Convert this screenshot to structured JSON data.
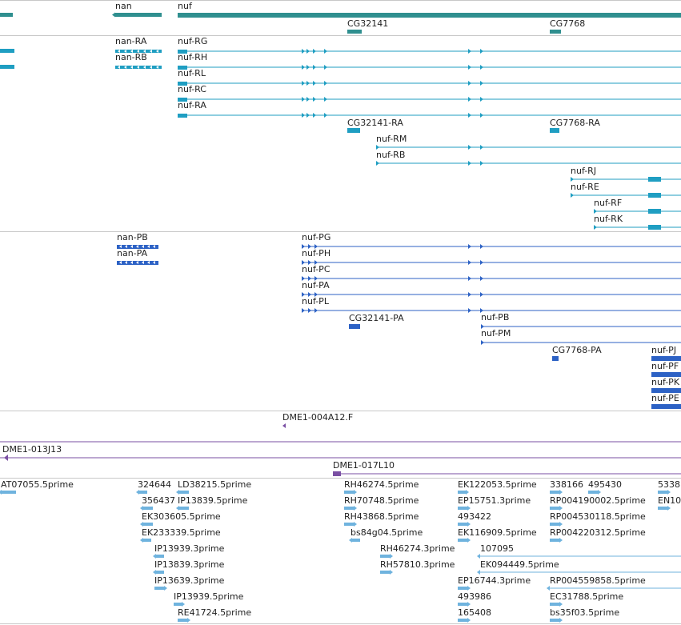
{
  "colors": {
    "gene": "#2f8f8f",
    "transcript": "#1f9ec2",
    "protein": "#2d62c5",
    "clone": "#7a4fa3",
    "est": "#6fb3de",
    "separator": "#c8c8c8"
  },
  "tracks": {
    "genes": [
      {
        "label": "nan"
      },
      {
        "label": "nuf"
      },
      {
        "label": "CG32141"
      },
      {
        "label": "CG7768"
      }
    ],
    "transcripts": [
      {
        "label": "nan-RA"
      },
      {
        "label": "nan-RB"
      },
      {
        "label": "nuf-RG"
      },
      {
        "label": "nuf-RH"
      },
      {
        "label": "nuf-RL"
      },
      {
        "label": "nuf-RC"
      },
      {
        "label": "nuf-RA"
      },
      {
        "label": "CG32141-RA"
      },
      {
        "label": "CG7768-RA"
      },
      {
        "label": "nuf-RM"
      },
      {
        "label": "nuf-RB"
      },
      {
        "label": "nuf-RJ"
      },
      {
        "label": "nuf-RE"
      },
      {
        "label": "nuf-RF"
      },
      {
        "label": "nuf-RK"
      }
    ],
    "proteins": [
      {
        "label": "nan-PB"
      },
      {
        "label": "nan-PA"
      },
      {
        "label": "nuf-PG"
      },
      {
        "label": "nuf-PH"
      },
      {
        "label": "nuf-PC"
      },
      {
        "label": "nuf-PA"
      },
      {
        "label": "nuf-PL"
      },
      {
        "label": "CG32141-PA"
      },
      {
        "label": "nuf-PB"
      },
      {
        "label": "nuf-PM"
      },
      {
        "label": "CG7768-PA"
      },
      {
        "label": "nuf-PJ"
      },
      {
        "label": "nuf-PF"
      },
      {
        "label": "nuf-PK"
      },
      {
        "label": "nuf-PE"
      }
    ],
    "clones": [
      {
        "label": "DME1-004A12.F"
      },
      {
        "label": "DME1-013J13"
      },
      {
        "label": "DME1-017L10"
      }
    ],
    "ests": [
      {
        "label": "AT07055.5prime"
      },
      {
        "label": "324644"
      },
      {
        "label": "LD38215.5prime"
      },
      {
        "label": "RH46274.5prime"
      },
      {
        "label": "EK122053.5prime"
      },
      {
        "label": "338166"
      },
      {
        "label": "495430"
      },
      {
        "label": "5338"
      },
      {
        "label": "356437"
      },
      {
        "label": "IP13839.5prime"
      },
      {
        "label": "RH70748.5prime"
      },
      {
        "label": "EP15751.3prime"
      },
      {
        "label": "RP004190002.5prime"
      },
      {
        "label": "EN10"
      },
      {
        "label": "EK303605.5prime"
      },
      {
        "label": "RH43868.5prime"
      },
      {
        "label": "493422"
      },
      {
        "label": "RP004530118.5prime"
      },
      {
        "label": "EK233339.5prime"
      },
      {
        "label": "bs84g04.5prime"
      },
      {
        "label": "EK116909.5prime"
      },
      {
        "label": "RP004220312.5prime"
      },
      {
        "label": "IP13939.3prime"
      },
      {
        "label": "RH46274.3prime"
      },
      {
        "label": "107095"
      },
      {
        "label": "IP13839.3prime"
      },
      {
        "label": "RH57810.3prime"
      },
      {
        "label": "EK094449.5prime"
      },
      {
        "label": "IP13639.3prime"
      },
      {
        "label": "EP16744.3prime"
      },
      {
        "label": "RP004559858.5prime"
      },
      {
        "label": "IP13939.5prime"
      },
      {
        "label": "493986"
      },
      {
        "label": "EC31788.5prime"
      },
      {
        "label": "RE41724.5prime"
      },
      {
        "label": "165408"
      },
      {
        "label": "bs35f03.5prime"
      }
    ]
  }
}
